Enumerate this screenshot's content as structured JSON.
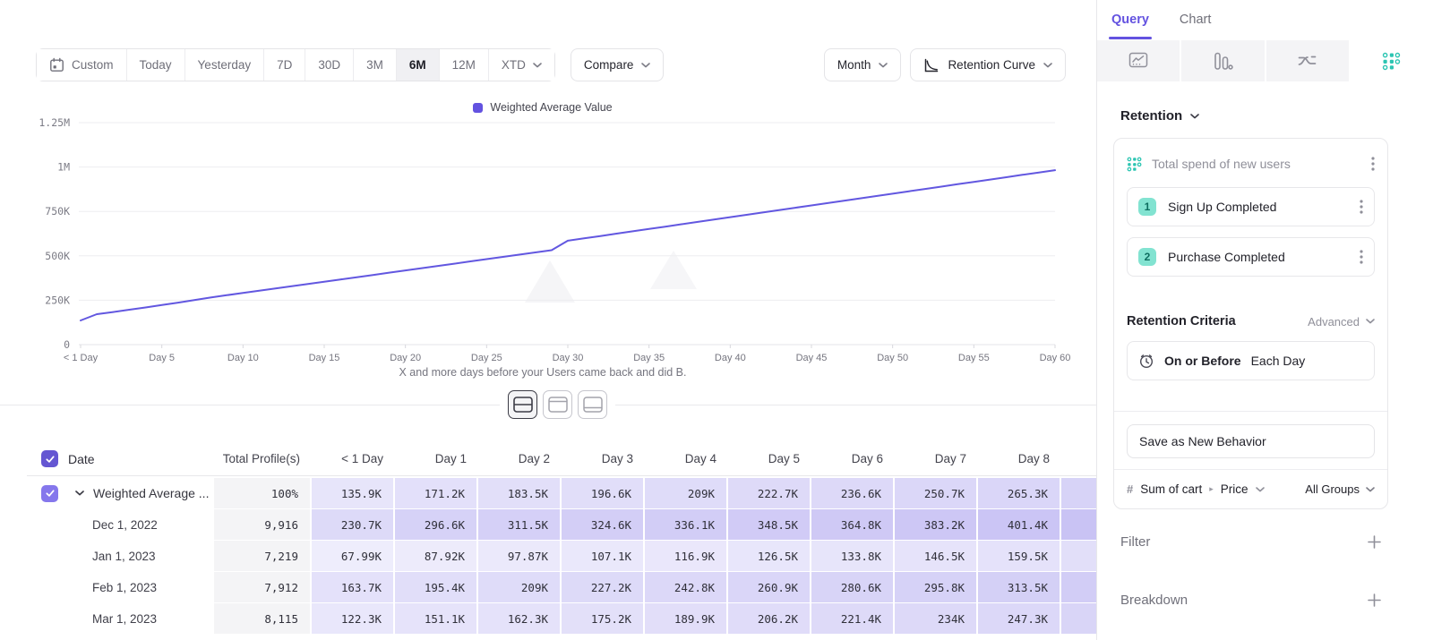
{
  "colors": {
    "accent_purple": "#6352e0",
    "teal": "#2cc5b2",
    "heatmap_base_rgb": "99,82,224"
  },
  "toolbar": {
    "ranges": [
      {
        "label": "Custom",
        "icon": "calendar"
      },
      {
        "label": "Today"
      },
      {
        "label": "Yesterday"
      },
      {
        "label": "7D"
      },
      {
        "label": "30D"
      },
      {
        "label": "3M"
      },
      {
        "label": "6M",
        "active": true
      },
      {
        "label": "12M"
      },
      {
        "label": "XTD",
        "chevron": true
      }
    ],
    "compare_label": "Compare",
    "granularity_label": "Month",
    "chart_style_label": "Retention Curve"
  },
  "chart_data": {
    "type": "line",
    "legend": [
      "Weighted Average Value"
    ],
    "line_color": "#6257e0",
    "caption": "X and more days before your Users came back and did B.",
    "x_tick_labels": [
      "< 1 Day",
      "Day 5",
      "Day 10",
      "Day 15",
      "Day 20",
      "Day 25",
      "Day 30",
      "Day 35",
      "Day 40",
      "Day 45",
      "Day 50",
      "Day 55",
      "Day 60"
    ],
    "y_tick_labels": [
      "0",
      "250K",
      "500K",
      "750K",
      "1M",
      "1.25M"
    ],
    "ylim": [
      0,
      1250000
    ],
    "x_days": "0-60",
    "series": [
      {
        "name": "Weighted Average Value",
        "values": [
          135900,
          171200,
          183500,
          196600,
          209000,
          222700,
          236600,
          250700,
          265300,
          278000,
          290700,
          303400,
          316100,
          328800,
          341500,
          354200,
          366900,
          379600,
          392300,
          405000,
          417700,
          430400,
          443100,
          455800,
          468500,
          481200,
          493900,
          506600,
          519300,
          532000,
          585000,
          598250,
          611500,
          624750,
          638000,
          651250,
          664500,
          677750,
          691000,
          704250,
          717500,
          730750,
          744000,
          757250,
          770500,
          783750,
          797000,
          810250,
          823500,
          836750,
          850000,
          863250,
          876500,
          889750,
          903000,
          916250,
          929500,
          942750,
          956000,
          969250,
          982500
        ]
      }
    ],
    "grid": true,
    "legend_position": "top-center"
  },
  "view_toggles": {
    "options": [
      "split-view",
      "chart-only",
      "table-only"
    ],
    "active": "split-view"
  },
  "table": {
    "columns": [
      "Date",
      "Total Profile(s)",
      "< 1 Day",
      "Day 1",
      "Day 2",
      "Day 3",
      "Day 4",
      "Day 5",
      "Day 6",
      "Day 7",
      "Day 8"
    ],
    "rows": [
      {
        "label": "Weighted Average ...",
        "expandable": true,
        "checked": true,
        "total": "100%",
        "values": [
          "135.9K",
          "171.2K",
          "183.5K",
          "196.6K",
          "209K",
          "222.7K",
          "236.6K",
          "250.7K",
          "265.3K"
        ]
      },
      {
        "label": "Dec 1, 2022",
        "total": "9,916",
        "values": [
          "230.7K",
          "296.6K",
          "311.5K",
          "324.6K",
          "336.1K",
          "348.5K",
          "364.8K",
          "383.2K",
          "401.4K"
        ]
      },
      {
        "label": "Jan 1, 2023",
        "total": "7,219",
        "values": [
          "67.99K",
          "87.92K",
          "97.87K",
          "107.1K",
          "116.9K",
          "126.5K",
          "133.8K",
          "146.5K",
          "159.5K"
        ]
      },
      {
        "label": "Feb 1, 2023",
        "total": "7,912",
        "values": [
          "163.7K",
          "195.4K",
          "209K",
          "227.2K",
          "242.8K",
          "260.9K",
          "280.6K",
          "295.8K",
          "313.5K"
        ]
      },
      {
        "label": "Mar 1, 2023",
        "total": "8,115",
        "values": [
          "122.3K",
          "151.1K",
          "162.3K",
          "175.2K",
          "189.9K",
          "206.2K",
          "221.4K",
          "234K",
          "247.3K"
        ]
      }
    ]
  },
  "panel": {
    "tabs": [
      {
        "label": "Query",
        "active": true
      },
      {
        "label": "Chart",
        "active": false
      }
    ],
    "chart_types": [
      "insights",
      "funnels",
      "flows",
      "retention"
    ],
    "active_chart_type": "retention",
    "section_title": "Retention",
    "behavior_card": {
      "title": "Total spend of new users",
      "steps": [
        {
          "num": "1",
          "label": "Sign Up Completed"
        },
        {
          "num": "2",
          "label": "Purchase Completed"
        }
      ],
      "criteria_label": "Retention Criteria",
      "criteria_mode": "Advanced",
      "criteria_condition": "On or Before",
      "criteria_value": "Each Day",
      "save_button": "Save as New Behavior",
      "metric": {
        "symbol": "#",
        "event": "Sum of cart",
        "property": "Price",
        "groups": "All Groups"
      }
    },
    "sections": [
      {
        "label": "Filter"
      },
      {
        "label": "Breakdown"
      }
    ]
  }
}
